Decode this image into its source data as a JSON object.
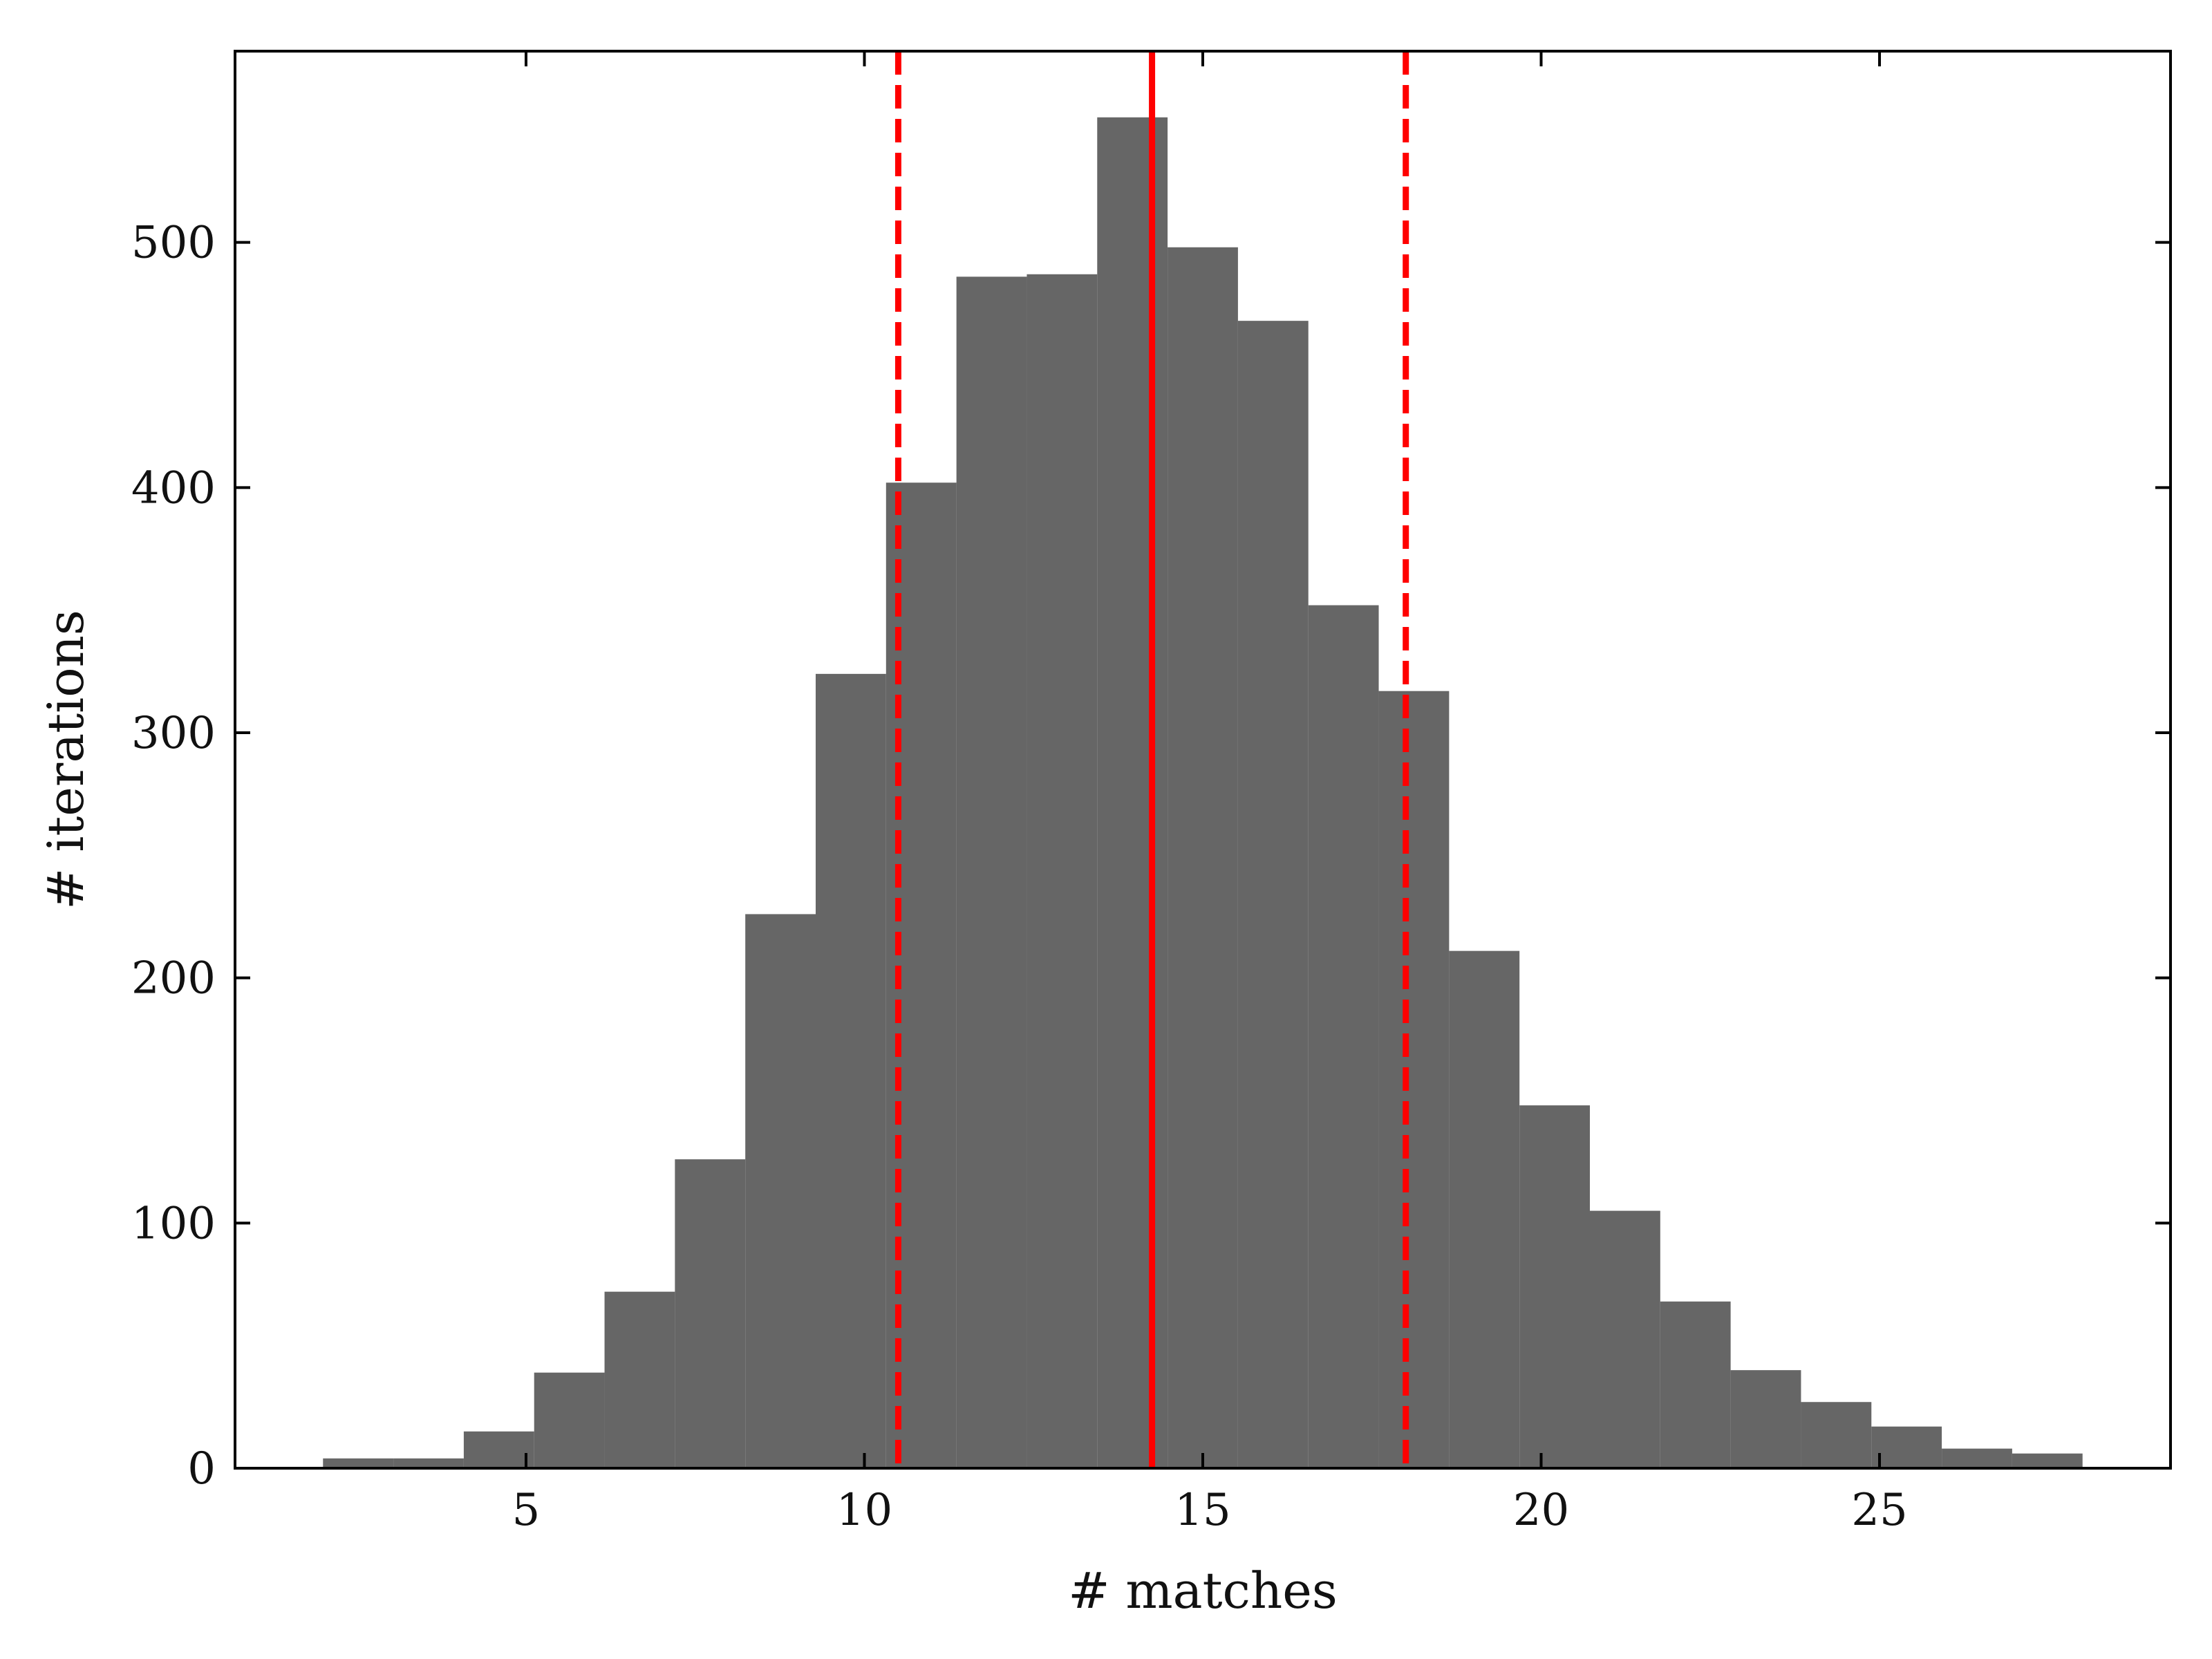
{
  "chart_data": {
    "type": "bar",
    "subtype": "histogram",
    "xlabel": "# matches",
    "ylabel": "# iterations",
    "xlim": [
      0.7,
      29.3
    ],
    "ylim": [
      0,
      578
    ],
    "x_ticks": [
      5,
      10,
      15,
      20,
      25
    ],
    "y_ticks": [
      0,
      100,
      200,
      300,
      400,
      500
    ],
    "x_tick_labels": [
      "5",
      "10",
      "15",
      "20",
      "25"
    ],
    "y_tick_labels": [
      "0",
      "100",
      "200",
      "300",
      "400",
      "500"
    ],
    "bar_color": "#666666",
    "bins": [
      {
        "start": 2.0,
        "end": 3.04,
        "count": 4
      },
      {
        "start": 3.04,
        "end": 4.08,
        "count": 4
      },
      {
        "start": 4.08,
        "end": 5.12,
        "count": 15
      },
      {
        "start": 5.12,
        "end": 6.16,
        "count": 39
      },
      {
        "start": 6.16,
        "end": 7.2,
        "count": 72
      },
      {
        "start": 7.2,
        "end": 8.24,
        "count": 126
      },
      {
        "start": 8.24,
        "end": 9.28,
        "count": 226
      },
      {
        "start": 9.28,
        "end": 10.32,
        "count": 324
      },
      {
        "start": 10.32,
        "end": 11.36,
        "count": 402
      },
      {
        "start": 11.36,
        "end": 12.4,
        "count": 486
      },
      {
        "start": 12.4,
        "end": 13.44,
        "count": 487
      },
      {
        "start": 13.44,
        "end": 14.48,
        "count": 551
      },
      {
        "start": 14.48,
        "end": 15.52,
        "count": 498
      },
      {
        "start": 15.52,
        "end": 16.56,
        "count": 468
      },
      {
        "start": 16.56,
        "end": 17.6,
        "count": 352
      },
      {
        "start": 17.6,
        "end": 18.64,
        "count": 317
      },
      {
        "start": 18.64,
        "end": 19.68,
        "count": 211
      },
      {
        "start": 19.68,
        "end": 20.72,
        "count": 148
      },
      {
        "start": 20.72,
        "end": 21.76,
        "count": 105
      },
      {
        "start": 21.76,
        "end": 22.8,
        "count": 68
      },
      {
        "start": 22.8,
        "end": 23.84,
        "count": 40
      },
      {
        "start": 23.84,
        "end": 24.88,
        "count": 27
      },
      {
        "start": 24.88,
        "end": 25.92,
        "count": 17
      },
      {
        "start": 25.92,
        "end": 26.96,
        "count": 8
      },
      {
        "start": 26.96,
        "end": 28.0,
        "count": 6
      }
    ],
    "vertical_lines": [
      {
        "x": 10.5,
        "style": "dashed",
        "color": "#ff0000"
      },
      {
        "x": 14.25,
        "style": "solid",
        "color": "#ff0000"
      },
      {
        "x": 18.0,
        "style": "dashed",
        "color": "#ff0000"
      }
    ],
    "grid": false,
    "legend": "none"
  }
}
